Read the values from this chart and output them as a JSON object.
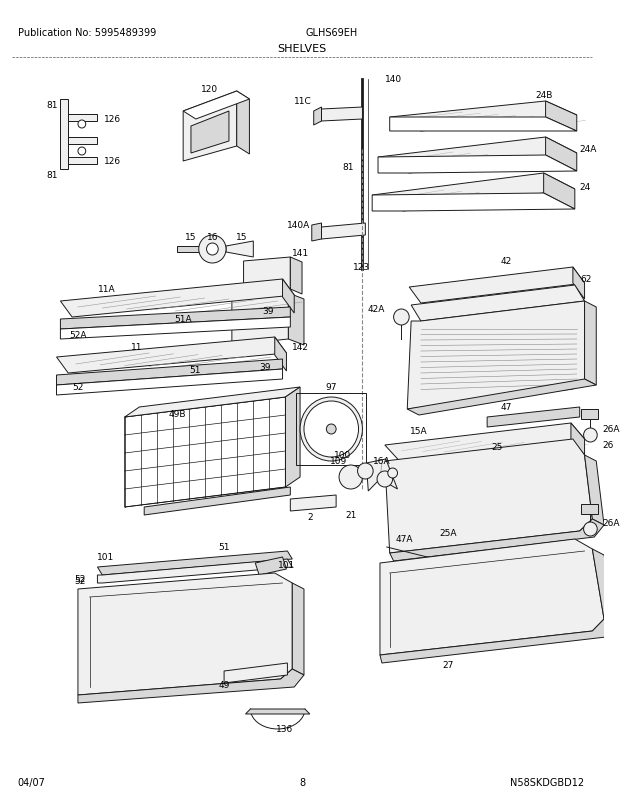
{
  "title": "SHELVES",
  "pub_no": "Publication No: 5995489399",
  "model": "GLHS69EH",
  "date": "04/07",
  "page": "8",
  "watermark": "N58SKDGBD12",
  "bg_color": "#ffffff",
  "text_color": "#000000",
  "header_fontsize": 7,
  "label_fontsize": 6.5,
  "lc": "#1a1a1a",
  "lw": 0.7
}
